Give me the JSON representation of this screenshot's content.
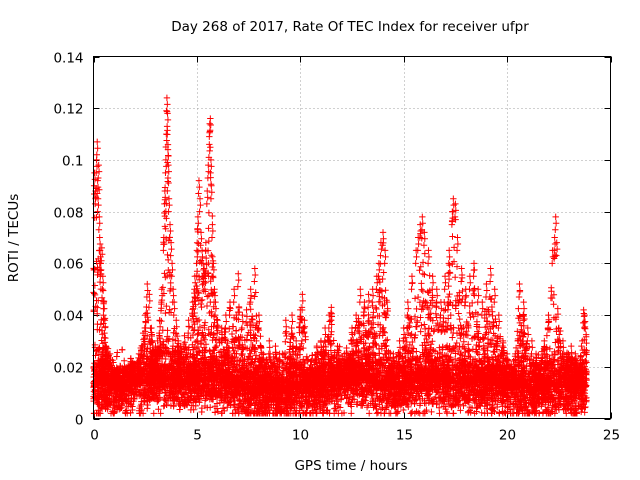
{
  "chart_data": {
    "type": "scatter",
    "title": "Day 268 of 2017, Rate Of TEC Index for receiver ufpr",
    "xlabel": "GPS time / hours",
    "ylabel": "ROTI / TECUs",
    "xlim": [
      0,
      25
    ],
    "ylim": [
      0,
      0.14
    ],
    "x_ticks": [
      0,
      5,
      10,
      15,
      20,
      25
    ],
    "x_tick_labels": [
      "0",
      "5",
      "10",
      "15",
      "20",
      "25"
    ],
    "y_ticks": [
      0,
      0.02,
      0.04,
      0.06,
      0.08,
      0.1,
      0.12,
      0.14
    ],
    "y_tick_labels": [
      "0",
      "0.02",
      "0.04",
      "0.06",
      "0.08",
      "0.1",
      "0.12",
      "0.14"
    ],
    "grid": true,
    "marker": "plus",
    "marker_color": "#ff0000",
    "series": [
      {
        "name": "ROTI",
        "points": [
          [
            0.05,
            0.095
          ],
          [
            0.1,
            0.088
          ],
          [
            0.15,
            0.1
          ],
          [
            0.18,
            0.107
          ],
          [
            0.2,
            0.092
          ],
          [
            0.22,
            0.085
          ],
          [
            0.25,
            0.098
          ],
          [
            0.28,
            0.078
          ],
          [
            0.3,
            0.07
          ],
          [
            0.32,
            0.065
          ],
          [
            0.35,
            0.06
          ],
          [
            0.4,
            0.066
          ],
          [
            0.45,
            0.055
          ],
          [
            0.5,
            0.045
          ],
          [
            0.55,
            0.038
          ],
          [
            0.6,
            0.028
          ],
          [
            0.65,
            0.026
          ],
          [
            0.7,
            0.027
          ],
          [
            0.8,
            0.025
          ],
          [
            0.9,
            0.018
          ],
          [
            1.2,
            0.016
          ],
          [
            1.5,
            0.02
          ],
          [
            1.8,
            0.022
          ],
          [
            2.0,
            0.019
          ],
          [
            2.2,
            0.025
          ],
          [
            2.4,
            0.033
          ],
          [
            2.5,
            0.04
          ],
          [
            2.6,
            0.052
          ],
          [
            2.7,
            0.048
          ],
          [
            2.8,
            0.035
          ],
          [
            3.0,
            0.028
          ],
          [
            3.1,
            0.03
          ],
          [
            3.2,
            0.038
          ],
          [
            3.3,
            0.05
          ],
          [
            3.4,
            0.07
          ],
          [
            3.45,
            0.088
          ],
          [
            3.5,
            0.1
          ],
          [
            3.52,
            0.11
          ],
          [
            3.55,
            0.124
          ],
          [
            3.58,
            0.118
          ],
          [
            3.6,
            0.104
          ],
          [
            3.62,
            0.098
          ],
          [
            3.65,
            0.085
          ],
          [
            3.7,
            0.075
          ],
          [
            3.75,
            0.068
          ],
          [
            3.8,
            0.06
          ],
          [
            3.85,
            0.05
          ],
          [
            3.9,
            0.045
          ],
          [
            4.0,
            0.038
          ],
          [
            4.1,
            0.03
          ],
          [
            4.2,
            0.028
          ],
          [
            4.4,
            0.032
          ],
          [
            4.6,
            0.038
          ],
          [
            4.8,
            0.045
          ],
          [
            4.9,
            0.055
          ],
          [
            5.0,
            0.065
          ],
          [
            5.05,
            0.078
          ],
          [
            5.1,
            0.092
          ],
          [
            5.15,
            0.085
          ],
          [
            5.2,
            0.072
          ],
          [
            5.25,
            0.065
          ],
          [
            5.3,
            0.06
          ],
          [
            5.35,
            0.058
          ],
          [
            5.4,
            0.055
          ],
          [
            5.45,
            0.062
          ],
          [
            5.5,
            0.088
          ],
          [
            5.55,
            0.098
          ],
          [
            5.6,
            0.106
          ],
          [
            5.62,
            0.114
          ],
          [
            5.65,
            0.116
          ],
          [
            5.68,
            0.1
          ],
          [
            5.7,
            0.09
          ],
          [
            5.75,
            0.075
          ],
          [
            5.8,
            0.06
          ],
          [
            5.85,
            0.05
          ],
          [
            5.9,
            0.045
          ],
          [
            6.0,
            0.038
          ],
          [
            6.2,
            0.035
          ],
          [
            6.4,
            0.04
          ],
          [
            6.6,
            0.045
          ],
          [
            6.8,
            0.05
          ],
          [
            7.0,
            0.056
          ],
          [
            7.2,
            0.04
          ],
          [
            7.4,
            0.042
          ],
          [
            7.6,
            0.05
          ],
          [
            7.8,
            0.058
          ],
          [
            8.0,
            0.04
          ],
          [
            8.2,
            0.025
          ],
          [
            8.5,
            0.03
          ],
          [
            8.8,
            0.028
          ],
          [
            9.0,
            0.025
          ],
          [
            9.3,
            0.038
          ],
          [
            9.6,
            0.04
          ],
          [
            9.8,
            0.03
          ],
          [
            10.0,
            0.042
          ],
          [
            10.1,
            0.048
          ],
          [
            10.2,
            0.038
          ],
          [
            10.5,
            0.022
          ],
          [
            10.8,
            0.028
          ],
          [
            11.0,
            0.03
          ],
          [
            11.2,
            0.035
          ],
          [
            11.4,
            0.04
          ],
          [
            11.5,
            0.043
          ],
          [
            11.8,
            0.028
          ],
          [
            12.0,
            0.02
          ],
          [
            12.3,
            0.025
          ],
          [
            12.5,
            0.035
          ],
          [
            12.7,
            0.04
          ],
          [
            12.9,
            0.05
          ],
          [
            13.1,
            0.045
          ],
          [
            13.3,
            0.048
          ],
          [
            13.5,
            0.05
          ],
          [
            13.7,
            0.055
          ],
          [
            13.8,
            0.06
          ],
          [
            13.9,
            0.068
          ],
          [
            14.0,
            0.072
          ],
          [
            14.1,
            0.065
          ],
          [
            14.2,
            0.045
          ],
          [
            14.5,
            0.025
          ],
          [
            14.8,
            0.03
          ],
          [
            15.0,
            0.035
          ],
          [
            15.2,
            0.045
          ],
          [
            15.4,
            0.055
          ],
          [
            15.6,
            0.065
          ],
          [
            15.7,
            0.07
          ],
          [
            15.8,
            0.075
          ],
          [
            15.9,
            0.078
          ],
          [
            16.0,
            0.072
          ],
          [
            16.2,
            0.065
          ],
          [
            16.4,
            0.055
          ],
          [
            16.6,
            0.05
          ],
          [
            16.8,
            0.045
          ],
          [
            17.0,
            0.055
          ],
          [
            17.2,
            0.065
          ],
          [
            17.35,
            0.08
          ],
          [
            17.4,
            0.085
          ],
          [
            17.5,
            0.083
          ],
          [
            17.6,
            0.07
          ],
          [
            17.8,
            0.058
          ],
          [
            18.0,
            0.05
          ],
          [
            18.2,
            0.055
          ],
          [
            18.4,
            0.06
          ],
          [
            18.6,
            0.05
          ],
          [
            18.8,
            0.045
          ],
          [
            19.0,
            0.052
          ],
          [
            19.2,
            0.058
          ],
          [
            19.4,
            0.05
          ],
          [
            19.6,
            0.04
          ],
          [
            19.8,
            0.03
          ],
          [
            20.0,
            0.025
          ],
          [
            20.2,
            0.02
          ],
          [
            20.4,
            0.025
          ],
          [
            20.6,
            0.052
          ],
          [
            20.8,
            0.045
          ],
          [
            21.0,
            0.035
          ],
          [
            21.2,
            0.03
          ],
          [
            21.4,
            0.025
          ],
          [
            21.6,
            0.02
          ],
          [
            21.8,
            0.03
          ],
          [
            22.0,
            0.04
          ],
          [
            22.2,
            0.065
          ],
          [
            22.3,
            0.07
          ],
          [
            22.35,
            0.078
          ],
          [
            22.4,
            0.068
          ],
          [
            22.5,
            0.035
          ],
          [
            22.7,
            0.03
          ],
          [
            22.9,
            0.025
          ],
          [
            23.1,
            0.028
          ],
          [
            23.3,
            0.025
          ],
          [
            23.5,
            0.02
          ],
          [
            23.7,
            0.042
          ],
          [
            23.75,
            0.04
          ]
        ],
        "baseline": [
          [
            0.0,
            0.012
          ],
          [
            0.5,
            0.014
          ],
          [
            1.0,
            0.011
          ],
          [
            1.5,
            0.012
          ],
          [
            2.0,
            0.013
          ],
          [
            2.5,
            0.014
          ],
          [
            3.0,
            0.015
          ],
          [
            3.5,
            0.016
          ],
          [
            4.0,
            0.014
          ],
          [
            4.5,
            0.013
          ],
          [
            5.0,
            0.015
          ],
          [
            5.5,
            0.016
          ],
          [
            6.0,
            0.014
          ],
          [
            6.5,
            0.013
          ],
          [
            7.0,
            0.012
          ],
          [
            7.5,
            0.011
          ],
          [
            8.0,
            0.01
          ],
          [
            8.5,
            0.011
          ],
          [
            9.0,
            0.01
          ],
          [
            9.5,
            0.011
          ],
          [
            10.0,
            0.012
          ],
          [
            10.5,
            0.012
          ],
          [
            11.0,
            0.013
          ],
          [
            11.5,
            0.013
          ],
          [
            12.0,
            0.014
          ],
          [
            12.5,
            0.016
          ],
          [
            13.0,
            0.015
          ],
          [
            13.5,
            0.014
          ],
          [
            14.0,
            0.013
          ],
          [
            14.5,
            0.012
          ],
          [
            15.0,
            0.013
          ],
          [
            15.5,
            0.014
          ],
          [
            16.0,
            0.015
          ],
          [
            16.5,
            0.015
          ],
          [
            17.0,
            0.014
          ],
          [
            17.5,
            0.013
          ],
          [
            18.0,
            0.013
          ],
          [
            18.5,
            0.014
          ],
          [
            19.0,
            0.014
          ],
          [
            19.5,
            0.013
          ],
          [
            20.0,
            0.012
          ],
          [
            20.5,
            0.012
          ],
          [
            21.0,
            0.011
          ],
          [
            21.5,
            0.011
          ],
          [
            22.0,
            0.012
          ],
          [
            22.5,
            0.013
          ],
          [
            23.0,
            0.012
          ],
          [
            23.5,
            0.012
          ],
          [
            23.8,
            0.012
          ]
        ]
      }
    ]
  }
}
